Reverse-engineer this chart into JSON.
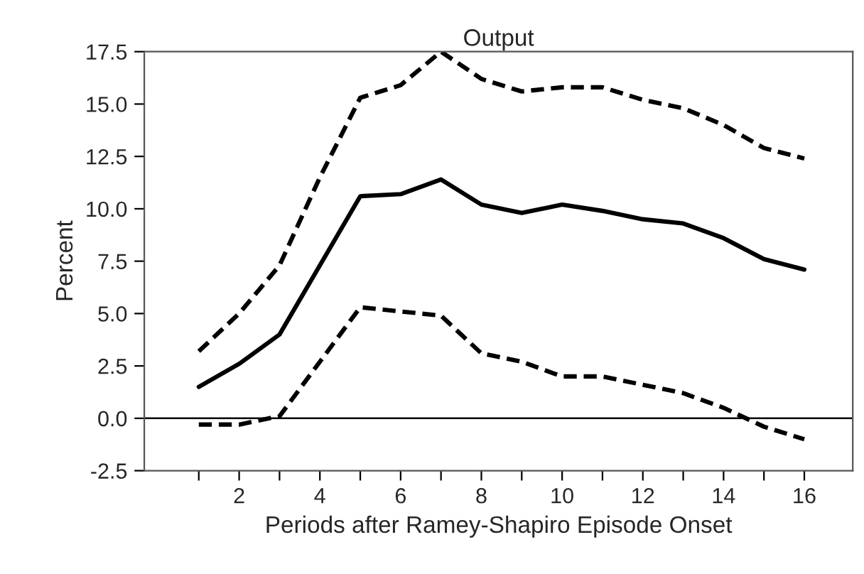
{
  "chart_data": {
    "type": "line",
    "title": "Output",
    "xlabel": "Periods after Ramey-Shapiro Episode Onset",
    "ylabel": "Percent",
    "x": [
      1,
      2,
      3,
      4,
      5,
      6,
      7,
      8,
      9,
      10,
      11,
      12,
      13,
      14,
      15,
      16
    ],
    "series": [
      {
        "color": "#000000",
        "line_style": "solid",
        "values": [
          1.5,
          2.6,
          4.0,
          7.3,
          10.6,
          10.7,
          11.4,
          10.2,
          9.8,
          10.2,
          9.9,
          9.5,
          9.3,
          8.6,
          7.6,
          7.1
        ]
      },
      {
        "color": "#000000",
        "line_style": "dashed",
        "values": [
          3.2,
          5.0,
          7.3,
          11.5,
          15.3,
          15.9,
          17.5,
          16.2,
          15.6,
          15.8,
          15.8,
          15.2,
          14.8,
          14.0,
          12.9,
          12.4
        ]
      },
      {
        "color": "#000000",
        "line_style": "dashed",
        "values": [
          -0.3,
          -0.3,
          0.1,
          2.7,
          5.3,
          5.1,
          4.9,
          3.1,
          2.7,
          2.0,
          2.0,
          1.6,
          1.2,
          0.5,
          -0.4,
          -1.0
        ]
      }
    ],
    "xlim": [
      -0.35,
      17.2
    ],
    "xticks": [
      {
        "value": 1,
        "label": null
      },
      2,
      {
        "value": 3,
        "label": null
      },
      4,
      {
        "value": 5,
        "label": null
      },
      6,
      {
        "value": 7,
        "label": null
      },
      8,
      {
        "value": 9,
        "label": null
      },
      10,
      {
        "value": 11,
        "label": null
      },
      12,
      {
        "value": 13,
        "label": null
      },
      14,
      {
        "value": 15,
        "label": null
      },
      16
    ],
    "ylim": [
      -2.5,
      17.5
    ],
    "yticks": [
      {
        "value": -2.5,
        "label": "-2.5"
      },
      {
        "value": 0,
        "label": "0.0"
      },
      2.5,
      {
        "value": 5,
        "label": "5.0"
      },
      7.5,
      {
        "value": 10,
        "label": "10.0"
      },
      12.5,
      {
        "value": 15,
        "label": "15.0"
      },
      17.5
    ],
    "ref_lines": [
      {
        "axis": "y",
        "value": 0,
        "color": "#000000",
        "line_style": "solid"
      }
    ],
    "grid": false,
    "legend": false
  }
}
